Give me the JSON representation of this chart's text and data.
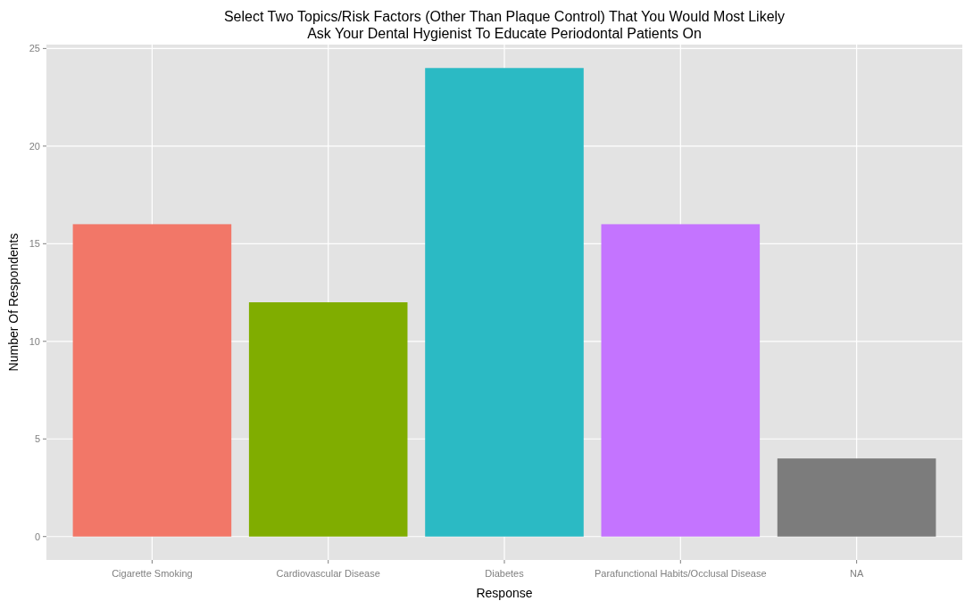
{
  "chart_data": {
    "type": "bar",
    "title": "Select Two Topics/Risk Factors (Other Than Plaque Control) That You Would Most Likely\nAsk Your Dental Hygienist To Educate Periodontal Patients On",
    "xlabel": "Response",
    "ylabel": "Number Of Respondents",
    "categories": [
      "Cigarette Smoking",
      "Cardiovascular Disease",
      "Diabetes",
      "Parafunctional Habits/Occlusal Disease",
      "NA"
    ],
    "values": [
      16,
      12,
      24,
      16,
      4
    ],
    "colors": [
      "#f27768",
      "#80ad00",
      "#2bbac4",
      "#c474ff",
      "#7c7c7c"
    ],
    "ylim": [
      -1.2,
      25.2
    ],
    "yticks": [
      0,
      5,
      10,
      15,
      20,
      25
    ],
    "grid": true
  }
}
